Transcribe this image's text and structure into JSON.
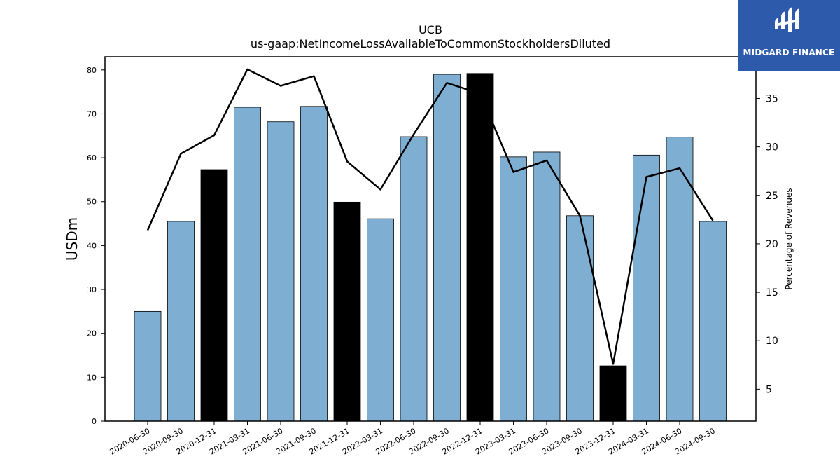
{
  "chart_data": {
    "type": "bar",
    "title": "UCB",
    "subtitle": "us-gaap:NetIncomeLossAvailableToCommonStockholdersDiluted",
    "ylabel": "USDm",
    "y2label": "Percentage of Revenues",
    "ylim": [
      0,
      83
    ],
    "y2lim": [
      1.7,
      39.3
    ],
    "yticks": [
      0,
      10,
      20,
      30,
      40,
      50,
      60,
      70,
      80
    ],
    "y2ticks": [
      5,
      10,
      15,
      20,
      25,
      30,
      35
    ],
    "categories": [
      "2020-06-30",
      "2020-09-30",
      "2020-12-31",
      "2021-03-31",
      "2021-06-30",
      "2021-09-30",
      "2021-12-31",
      "2022-03-31",
      "2022-06-30",
      "2022-09-30",
      "2022-12-31",
      "2023-03-31",
      "2023-06-30",
      "2023-09-30",
      "2023-12-31",
      "2024-03-31",
      "2024-06-30",
      "2024-09-30"
    ],
    "series": [
      {
        "type": "bar",
        "values": [
          25.0,
          45.5,
          57.3,
          71.5,
          68.2,
          71.7,
          49.9,
          46.1,
          64.8,
          79.0,
          79.2,
          60.2,
          61.3,
          46.8,
          12.6,
          60.6,
          64.7,
          45.5
        ],
        "highlight": [
          false,
          false,
          true,
          false,
          false,
          false,
          true,
          false,
          false,
          false,
          true,
          false,
          false,
          false,
          true,
          false,
          false,
          false
        ]
      },
      {
        "type": "line",
        "axis": "secondary",
        "values": [
          21.4,
          29.3,
          31.2,
          38.0,
          36.3,
          37.3,
          28.5,
          25.6,
          31.3,
          36.6,
          35.5,
          27.4,
          28.6,
          22.9,
          7.6,
          26.9,
          27.8,
          22.4
        ]
      }
    ],
    "colors": {
      "bar": "#7eafd3",
      "highlight": "#000000",
      "line": "#000000"
    },
    "grid": false
  },
  "logo": {
    "text": "MIDGARD FINANCE",
    "background": "#2d5aab"
  }
}
